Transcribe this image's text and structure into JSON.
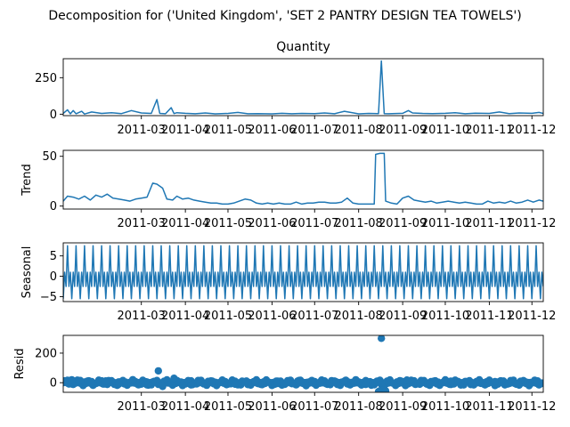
{
  "suptitle": "Decomposition for ('United Kingdom', 'SET 2 PANTRY DESIGN TEA TOWELS')",
  "series_color": "#1f77b4",
  "x_range": [
    "2011-01-05",
    "2011-12-09"
  ],
  "x_ticks": [
    "2011-03",
    "2011-04",
    "2011-05",
    "2011-06",
    "2011-07",
    "2011-08",
    "2011-09",
    "2011-10",
    "2011-11",
    "2011-12"
  ],
  "chart_data": [
    {
      "type": "line",
      "title": "Quantity",
      "ylabel": "",
      "ylim": [
        -10,
        380
      ],
      "yticks": [
        0,
        250
      ],
      "x": [
        "2011-01-05",
        "2011-01-08",
        "2011-01-10",
        "2011-01-12",
        "2011-01-14",
        "2011-01-18",
        "2011-01-20",
        "2011-01-25",
        "2011-02-01",
        "2011-02-08",
        "2011-02-15",
        "2011-02-22",
        "2011-03-01",
        "2011-03-08",
        "2011-03-12",
        "2011-03-14",
        "2011-03-18",
        "2011-03-22",
        "2011-03-24",
        "2011-03-26",
        "2011-04-01",
        "2011-04-08",
        "2011-04-15",
        "2011-04-22",
        "2011-05-01",
        "2011-05-08",
        "2011-05-15",
        "2011-05-22",
        "2011-06-01",
        "2011-06-08",
        "2011-06-15",
        "2011-06-22",
        "2011-07-01",
        "2011-07-08",
        "2011-07-15",
        "2011-07-22",
        "2011-08-01",
        "2011-08-08",
        "2011-08-15",
        "2011-08-17",
        "2011-08-19",
        "2011-08-22",
        "2011-09-01",
        "2011-09-05",
        "2011-09-08",
        "2011-09-15",
        "2011-09-22",
        "2011-10-01",
        "2011-10-08",
        "2011-10-15",
        "2011-10-22",
        "2011-11-01",
        "2011-11-08",
        "2011-11-15",
        "2011-11-22",
        "2011-12-01",
        "2011-12-06",
        "2011-12-09"
      ],
      "y": [
        5,
        30,
        2,
        25,
        3,
        20,
        1,
        15,
        5,
        10,
        4,
        25,
        8,
        5,
        100,
        5,
        3,
        45,
        4,
        10,
        6,
        3,
        8,
        2,
        5,
        12,
        3,
        4,
        2,
        6,
        3,
        5,
        4,
        8,
        3,
        20,
        2,
        5,
        4,
        365,
        4,
        3,
        6,
        25,
        8,
        5,
        4,
        6,
        10,
        3,
        7,
        5,
        15,
        4,
        8,
        6,
        12,
        5
      ]
    },
    {
      "type": "line",
      "title": "",
      "ylabel": "Trend",
      "ylim": [
        -3,
        56
      ],
      "yticks": [
        0,
        50
      ],
      "x": [
        "2011-01-05",
        "2011-01-08",
        "2011-01-12",
        "2011-01-16",
        "2011-01-20",
        "2011-01-24",
        "2011-01-28",
        "2011-02-01",
        "2011-02-05",
        "2011-02-09",
        "2011-02-13",
        "2011-02-17",
        "2011-02-21",
        "2011-02-25",
        "2011-03-01",
        "2011-03-05",
        "2011-03-09",
        "2011-03-12",
        "2011-03-16",
        "2011-03-19",
        "2011-03-23",
        "2011-03-26",
        "2011-03-30",
        "2011-04-03",
        "2011-04-07",
        "2011-04-11",
        "2011-04-15",
        "2011-04-19",
        "2011-04-23",
        "2011-04-27",
        "2011-05-01",
        "2011-05-05",
        "2011-05-09",
        "2011-05-13",
        "2011-05-17",
        "2011-05-21",
        "2011-05-25",
        "2011-05-29",
        "2011-06-02",
        "2011-06-06",
        "2011-06-10",
        "2011-06-14",
        "2011-06-18",
        "2011-06-22",
        "2011-06-26",
        "2011-06-30",
        "2011-07-04",
        "2011-07-08",
        "2011-07-12",
        "2011-07-16",
        "2011-07-20",
        "2011-07-24",
        "2011-07-28",
        "2011-08-01",
        "2011-08-05",
        "2011-08-09",
        "2011-08-12",
        "2011-08-13",
        "2011-08-16",
        "2011-08-19",
        "2011-08-20",
        "2011-08-24",
        "2011-08-28",
        "2011-09-01",
        "2011-09-05",
        "2011-09-09",
        "2011-09-13",
        "2011-09-17",
        "2011-09-21",
        "2011-09-25",
        "2011-09-29",
        "2011-10-03",
        "2011-10-07",
        "2011-10-11",
        "2011-10-15",
        "2011-10-19",
        "2011-10-23",
        "2011-10-27",
        "2011-10-31",
        "2011-11-04",
        "2011-11-08",
        "2011-11-12",
        "2011-11-16",
        "2011-11-20",
        "2011-11-24",
        "2011-11-28",
        "2011-12-02",
        "2011-12-06",
        "2011-12-09"
      ],
      "y": [
        5,
        10,
        9,
        7,
        10,
        6,
        11,
        9,
        12,
        8,
        7,
        6,
        5,
        7,
        8,
        9,
        23,
        22,
        18,
        7,
        6,
        10,
        7,
        8,
        6,
        5,
        4,
        3,
        3,
        2,
        2,
        3,
        5,
        7,
        6,
        3,
        2,
        3,
        2,
        3,
        2,
        2,
        4,
        2,
        3,
        3,
        4,
        4,
        3,
        3,
        4,
        8,
        3,
        2,
        2,
        2,
        2,
        52,
        53,
        53,
        5,
        3,
        2,
        8,
        10,
        6,
        5,
        4,
        5,
        3,
        4,
        5,
        4,
        3,
        4,
        3,
        2,
        2,
        5,
        3,
        4,
        3,
        5,
        3,
        4,
        6,
        4,
        6,
        5
      ]
    },
    {
      "type": "line",
      "title": "",
      "ylabel": "Seasonal",
      "ylim": [
        -6.2,
        8.2
      ],
      "yticks": [
        -5,
        0,
        5
      ],
      "period_days": 6,
      "period_pattern": [
        -5.5,
        1.0,
        -2.5,
        7.5,
        -2.5,
        1.0
      ]
    },
    {
      "type": "scatter",
      "title": "",
      "ylabel": "Resid",
      "ylim": [
        -65,
        320
      ],
      "yticks": [
        0,
        200
      ],
      "x": [
        "2011-01-06",
        "2011-01-11",
        "2011-01-17",
        "2011-01-25",
        "2011-02-04",
        "2011-02-13",
        "2011-02-23",
        "2011-03-05",
        "2011-03-13",
        "2011-03-16",
        "2011-03-24",
        "2011-04-05",
        "2011-04-20",
        "2011-05-06",
        "2011-05-20",
        "2011-06-05",
        "2011-06-20",
        "2011-07-05",
        "2011-07-22",
        "2011-08-06",
        "2011-08-15",
        "2011-08-16",
        "2011-08-17",
        "2011-08-18",
        "2011-08-19",
        "2011-08-20",
        "2011-09-04",
        "2011-09-20",
        "2011-10-05",
        "2011-10-20",
        "2011-11-05",
        "2011-11-20",
        "2011-12-05"
      ],
      "y": [
        10,
        20,
        15,
        -5,
        12,
        -10,
        20,
        -15,
        80,
        -25,
        30,
        -15,
        8,
        -10,
        10,
        -5,
        15,
        5,
        10,
        -12,
        -60,
        -55,
        300,
        -50,
        -58,
        -55,
        18,
        -8,
        10,
        -5,
        8,
        -10,
        12
      ],
      "baseline_band": [
        -20,
        20
      ]
    }
  ]
}
